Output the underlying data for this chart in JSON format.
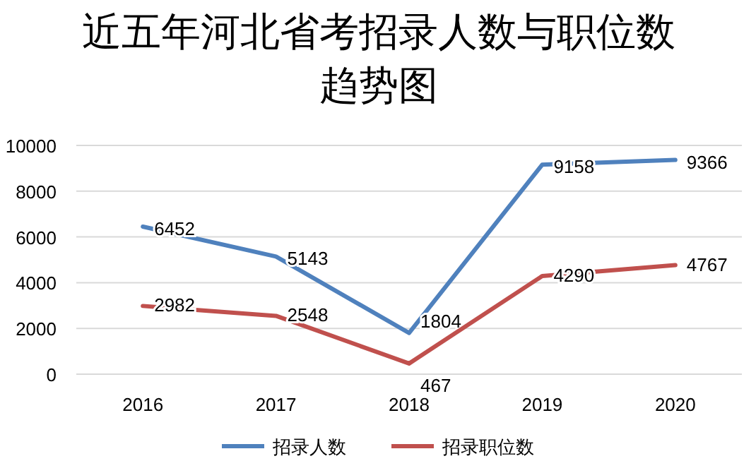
{
  "chart_data": {
    "type": "line",
    "title": "近五年河北省考招录人数与职位数趋势图",
    "categories": [
      "2016",
      "2017",
      "2018",
      "2019",
      "2020"
    ],
    "series": [
      {
        "name": "招录人数",
        "color": "#4f81bd",
        "values": [
          6452,
          5143,
          1804,
          9158,
          9366
        ]
      },
      {
        "name": "招录职位数",
        "color": "#c0504d",
        "values": [
          2982,
          2548,
          467,
          4290,
          4767
        ]
      }
    ],
    "ylim": [
      0,
      10000
    ],
    "yticks": [
      0,
      2000,
      4000,
      6000,
      8000,
      10000
    ],
    "grid": "y",
    "legend": "bottom",
    "data_labels": true,
    "marker": "none",
    "line_style": "solid"
  }
}
